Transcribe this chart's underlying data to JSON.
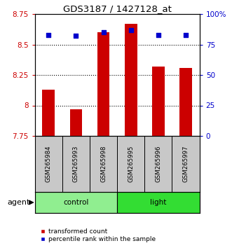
{
  "title": "GDS3187 / 1427128_at",
  "samples": [
    "GSM265984",
    "GSM265993",
    "GSM265998",
    "GSM265995",
    "GSM265996",
    "GSM265997"
  ],
  "bar_values": [
    8.13,
    7.97,
    8.6,
    8.67,
    8.32,
    8.31
  ],
  "percentile_values": [
    83,
    82,
    85,
    87,
    83,
    83
  ],
  "bar_color": "#cc0000",
  "percentile_color": "#0000cc",
  "ylim_left": [
    7.75,
    8.75
  ],
  "ylim_right": [
    0,
    100
  ],
  "yticks_left": [
    7.75,
    8.0,
    8.25,
    8.5,
    8.75
  ],
  "ytick_labels_left": [
    "7.75",
    "8",
    "8.25",
    "8.5",
    "8.75"
  ],
  "yticks_right": [
    0,
    25,
    50,
    75,
    100
  ],
  "ytick_labels_right": [
    "0",
    "25",
    "50",
    "75",
    "100%"
  ],
  "hgrid_lines": [
    8.0,
    8.25,
    8.5
  ],
  "groups": [
    {
      "label": "control",
      "start": 0,
      "end": 3,
      "color": "#90ee90"
    },
    {
      "label": "light",
      "start": 3,
      "end": 6,
      "color": "#33dd33"
    }
  ],
  "group_row_label": "agent",
  "bar_width": 0.45,
  "tick_label_area_color": "#c8c8c8",
  "legend_items": [
    {
      "label": "transformed count",
      "color": "#cc0000"
    },
    {
      "label": "percentile rank within the sample",
      "color": "#0000cc"
    }
  ]
}
